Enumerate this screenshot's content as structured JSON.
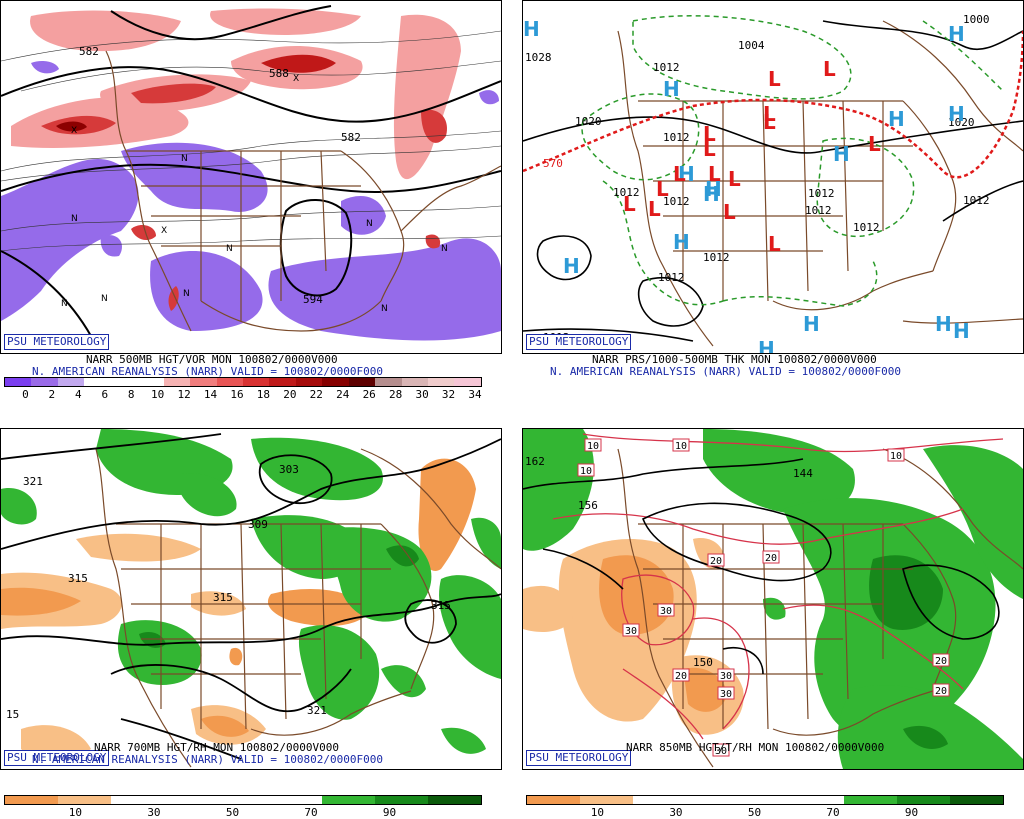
{
  "badge": "PSU METEOROLOGY",
  "panels": {
    "p1": {
      "line1": "NARR 500MB HGT/VOR MON 100802/0000V000",
      "line2": "N. AMERICAN REANALYSIS (NARR) VALID = 100802/0000F000",
      "contours": [
        "582",
        "582",
        "588",
        "594"
      ],
      "scale_ticks": [
        "0",
        "2",
        "4",
        "6",
        "8",
        "10",
        "12",
        "14",
        "16",
        "18",
        "20",
        "22",
        "24",
        "26",
        "28",
        "30",
        "32",
        "34"
      ],
      "scale_colors": [
        "#7b3ff0",
        "#9a6be8",
        "#c2a9ef",
        "#ffffff",
        "#ffffff",
        "#ffffff",
        "#f6b3b3",
        "#f07d7d",
        "#e85555",
        "#d83232",
        "#bf1a1a",
        "#a60c0c",
        "#860000",
        "#5e0000",
        "#b58e8e",
        "#d9b5b5",
        "#f0cccc",
        "#f6c6d6"
      ]
    },
    "p2": {
      "line1": "NARR PRS/1000-500MB THK MON 100802/0000V000",
      "line2": "N. AMERICAN REANALYSIS (NARR) VALID = 100802/0000F000",
      "labels": [
        "1028",
        "1004",
        "1012",
        "1020",
        "1012",
        "1012",
        "1012",
        "1012",
        "1012",
        "1012",
        "1012",
        "1012",
        "1012",
        "570",
        "1000",
        "1020",
        "1012"
      ],
      "high_symbol": "H",
      "low_symbol": "L",
      "colors": {
        "high": "#2d9ad6",
        "low": "#e01a1a"
      }
    },
    "p3": {
      "line1": "NARR 700MB HGT/RH MON 100802/0000V000",
      "line2": "N. AMERICAN REANALYSIS (NARR) VALID = 100802/0000F000",
      "contours": [
        "321",
        "303",
        "309",
        "315",
        "315",
        "315",
        "321",
        "15"
      ],
      "scale_ticks": [
        "10",
        "30",
        "50",
        "70",
        "90"
      ],
      "scale_colors": [
        "#f29a4f",
        "#f8bf86",
        "#ffffff",
        "#ffffff",
        "#ffffff",
        "#ffffff",
        "#33b633",
        "#17891b",
        "#0b5a0b"
      ]
    },
    "p4": {
      "line1": "NARR 850MB HGT/T/RH MON 100802/0000V000",
      "contours": [
        "162",
        "156",
        "144",
        "150"
      ],
      "temps": [
        "10",
        "10",
        "10",
        "10",
        "20",
        "20",
        "20",
        "30",
        "30",
        "30",
        "30",
        "30",
        "20",
        "20"
      ],
      "scale_ticks": [
        "10",
        "30",
        "50",
        "70",
        "90"
      ],
      "scale_colors": [
        "#f29a4f",
        "#f8bf86",
        "#ffffff",
        "#ffffff",
        "#ffffff",
        "#ffffff",
        "#33b633",
        "#17891b",
        "#0b5a0b"
      ]
    }
  }
}
